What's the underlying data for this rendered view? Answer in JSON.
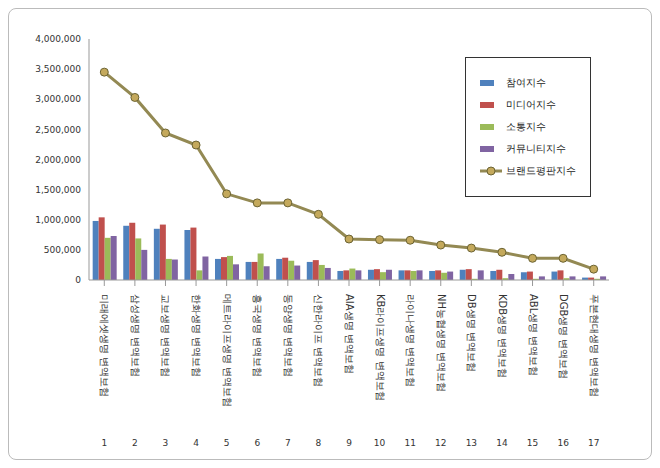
{
  "chart_data": {
    "type": "bar",
    "categories": [
      "미래에셋생명 변액보험",
      "삼성생명 변액보험",
      "교보생명 변액보험",
      "한화생명 변액보험",
      "메트라이프생명 변액보험",
      "흥국생명 변액보험",
      "동양생명 변액보험",
      "신한라이프 변액보험",
      "AIA생명 변액보험",
      "KB라이프생명 변액보험",
      "라이나생명 변액보험",
      "NH농협생명 변액보험",
      "DB생명 변액보험",
      "KDB생명 변액보험",
      "ABL생명 변액보험",
      "DGB생명 변액보험",
      "푸본현대생명 변액보험"
    ],
    "ranks": [
      1,
      2,
      3,
      4,
      5,
      6,
      7,
      8,
      9,
      10,
      11,
      12,
      13,
      14,
      15,
      16,
      17
    ],
    "series": [
      {
        "name": "참여지수",
        "color": "#4f81bd",
        "type": "bar",
        "values": [
          980000,
          900000,
          850000,
          830000,
          350000,
          300000,
          350000,
          300000,
          150000,
          170000,
          160000,
          150000,
          170000,
          150000,
          130000,
          140000,
          40000
        ]
      },
      {
        "name": "미디어지수",
        "color": "#c0504d",
        "type": "bar",
        "values": [
          1040000,
          950000,
          920000,
          870000,
          380000,
          300000,
          370000,
          330000,
          160000,
          180000,
          160000,
          160000,
          180000,
          170000,
          140000,
          160000,
          40000
        ]
      },
      {
        "name": "소통지수",
        "color": "#9bbb59",
        "type": "bar",
        "values": [
          700000,
          690000,
          350000,
          160000,
          400000,
          440000,
          320000,
          250000,
          190000,
          130000,
          150000,
          120000,
          20000,
          30000,
          20000,
          30000,
          20000
        ]
      },
      {
        "name": "커뮤니티지수",
        "color": "#8064a2",
        "type": "bar",
        "values": [
          730000,
          500000,
          340000,
          390000,
          260000,
          230000,
          240000,
          200000,
          160000,
          170000,
          160000,
          140000,
          160000,
          100000,
          60000,
          60000,
          60000
        ]
      },
      {
        "name": "브랜드평판지수",
        "color": "#938953",
        "type": "line",
        "marker": "circle",
        "values": [
          3450000,
          3030000,
          2440000,
          2240000,
          1430000,
          1280000,
          1280000,
          1090000,
          680000,
          670000,
          660000,
          580000,
          530000,
          460000,
          360000,
          360000,
          180000
        ]
      }
    ],
    "ylim": [
      0,
      4000000
    ],
    "yticks": [
      0,
      {
        "value": 500000,
        "label": "500,000"
      },
      {
        "value": 1000000,
        "label": "1,000,000"
      },
      {
        "value": 1500000,
        "label": "1,500,000"
      },
      {
        "value": 2000000,
        "label": "2,000,000"
      },
      {
        "value": 2500000,
        "label": "2,500,000"
      },
      {
        "value": 3000000,
        "label": "3,000,000"
      },
      {
        "value": 3500000,
        "label": "3,500,000"
      },
      {
        "value": 4000000,
        "label": "4,000,000"
      }
    ],
    "grid": false,
    "legend": "upper right"
  }
}
